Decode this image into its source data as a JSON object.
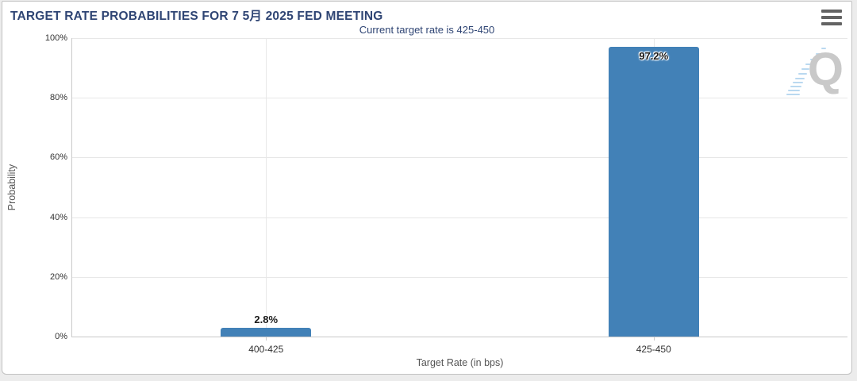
{
  "header": {
    "title": "TARGET RATE PROBABILITIES FOR 7 5月 2025 FED MEETING"
  },
  "chart_data": {
    "type": "bar",
    "title": "TARGET RATE PROBABILITIES FOR 7 5月 2025 FED MEETING",
    "subtitle": "Current target rate is 425-450",
    "categories": [
      "400-425",
      "425-450"
    ],
    "values": [
      2.8,
      97.2
    ],
    "data_labels": [
      "2.8%",
      "97.2%"
    ],
    "xlabel": "Target Rate (in bps)",
    "ylabel": "Probability",
    "ylim": [
      0,
      100
    ],
    "ytick_labels": [
      "100%",
      "80%",
      "60%",
      "40%",
      "20%",
      "0%"
    ],
    "grid": true,
    "legend_position": "none",
    "bar_color": "#4281b7"
  },
  "watermark": {
    "letter": "Q"
  },
  "colors": {
    "title_navy": "#2f4574",
    "bar_blue": "#4281b7",
    "grid_gray": "#e7e7e7",
    "axis_gray": "#c9c9c9",
    "watermark_gray": "#c9c9c9",
    "watermark_blue": "#bad9f0"
  }
}
